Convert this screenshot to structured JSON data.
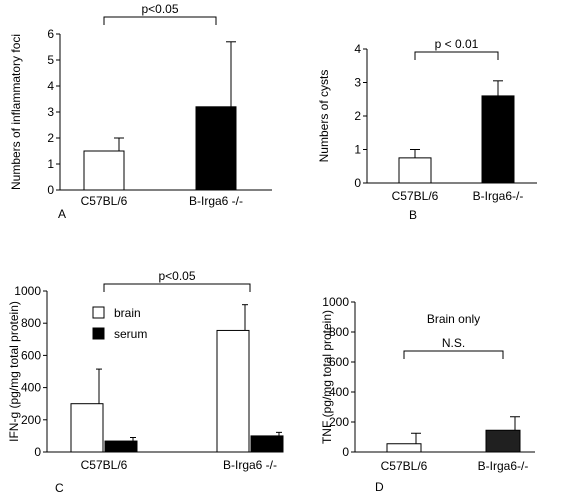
{
  "chart_data": [
    {
      "type": "bar",
      "panel_label": "A",
      "ylabel": "Numbers of inflammatory foci",
      "categories": [
        "C57BL/6",
        "B-Irga6 -/-"
      ],
      "ylim": [
        0,
        6
      ],
      "yticks": [
        0,
        1,
        2,
        3,
        4,
        5,
        6
      ],
      "series": [
        {
          "values": [
            1.5,
            3.2
          ],
          "errors": [
            0.5,
            2.5
          ],
          "colors": [
            "#ffffff",
            "#000000"
          ]
        }
      ],
      "significance": {
        "label": "p<0.05",
        "between": [
          0,
          1
        ]
      }
    },
    {
      "type": "bar",
      "panel_label": "B",
      "ylabel": "Numbers of cysts",
      "categories": [
        "C57BL/6",
        "B-Irga6-/-"
      ],
      "ylim": [
        0,
        4
      ],
      "yticks": [
        0,
        1,
        2,
        3,
        4
      ],
      "series": [
        {
          "values": [
            0.75,
            2.6
          ],
          "errors": [
            0.25,
            0.45
          ],
          "colors": [
            "#ffffff",
            "#000000"
          ]
        }
      ],
      "significance": {
        "label": "p < 0.01",
        "between": [
          0,
          1
        ]
      }
    },
    {
      "type": "bar",
      "panel_label": "C",
      "ylabel": "IFN-g (pg/mg total protein)",
      "categories": [
        "C57BL/6",
        "B-Irga6 -/-"
      ],
      "ylim": [
        0,
        1000
      ],
      "yticks": [
        0,
        200,
        400,
        600,
        800,
        1000
      ],
      "series": [
        {
          "name": "brain",
          "values": [
            300,
            755
          ],
          "errors": [
            215,
            160
          ],
          "color": "#ffffff"
        },
        {
          "name": "serum",
          "values": [
            68,
            100
          ],
          "errors": [
            22,
            22
          ],
          "color": "#000000"
        }
      ],
      "legend": {
        "placement": "top-left"
      },
      "significance": {
        "label": "p<0.05",
        "between": [
          0,
          1
        ]
      }
    },
    {
      "type": "bar",
      "panel_label": "D",
      "ylabel": "TNF (pg/mg total protein)",
      "annotation": "Brain only",
      "categories": [
        "C57BL/6",
        "B-Irga6-/-"
      ],
      "ylim": [
        0,
        1000
      ],
      "yticks": [
        0,
        200,
        400,
        600,
        800,
        1000
      ],
      "series": [
        {
          "values": [
            55,
            145
          ],
          "errors": [
            70,
            90
          ],
          "colors": [
            "#ffffff",
            "#202020"
          ]
        }
      ],
      "significance": {
        "label": "N.S.",
        "between": [
          0,
          1
        ]
      }
    }
  ]
}
